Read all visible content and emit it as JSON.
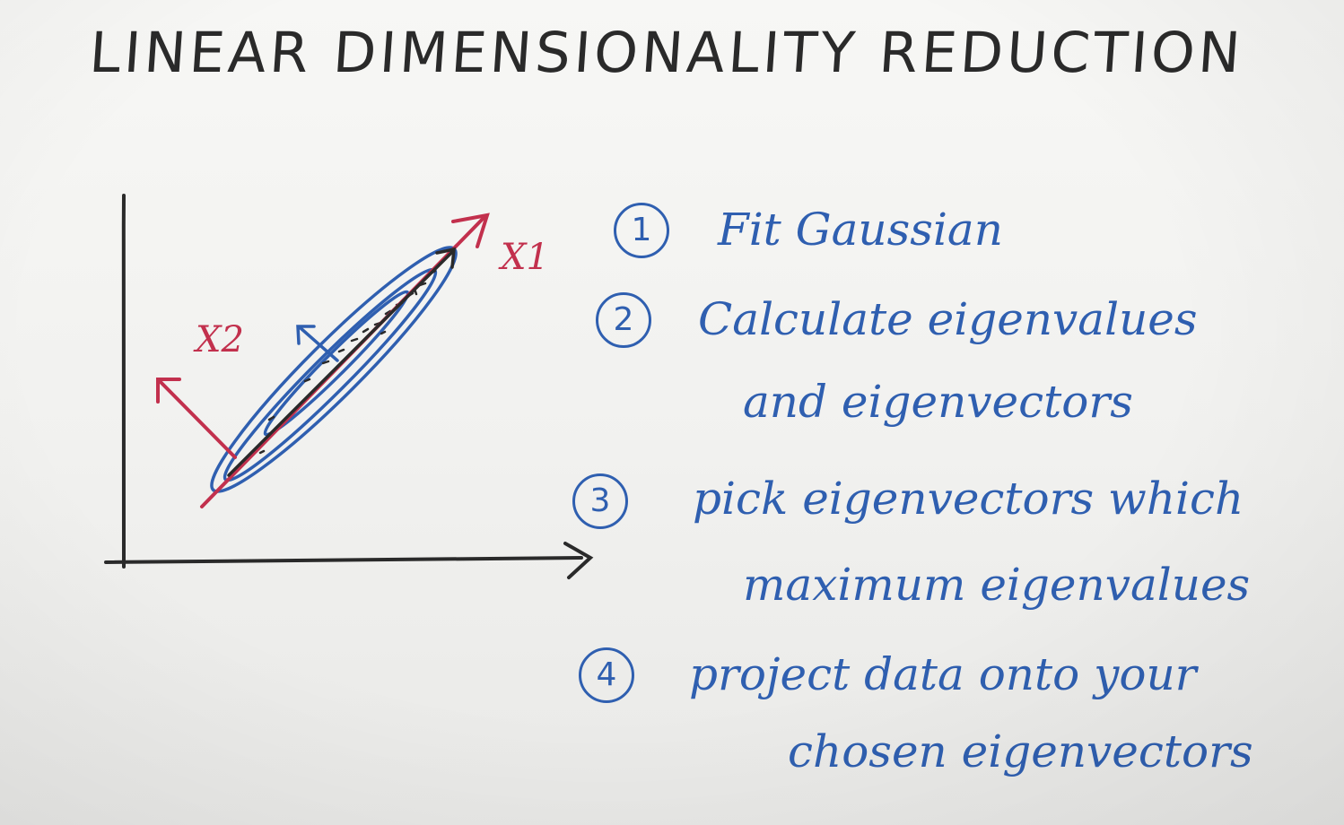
{
  "title": "LINEAR DIMENSIONALITY REDUCTION",
  "diagram": {
    "vector_labels": {
      "x1": "X1",
      "x2": "X2"
    },
    "colors": {
      "ink": "#2a2a2a",
      "red": "#c2304d",
      "blue": "#2f5fb0"
    }
  },
  "steps": [
    {
      "number": "1",
      "lines": [
        "Fit Gaussian"
      ]
    },
    {
      "number": "2",
      "lines": [
        "Calculate eigenvalues",
        "and eigenvectors"
      ]
    },
    {
      "number": "3",
      "lines": [
        "pick eigenvectors which",
        "maximum eigenvalues"
      ]
    },
    {
      "number": "4",
      "lines": [
        "project data onto your",
        "chosen eigenvectors"
      ]
    }
  ]
}
